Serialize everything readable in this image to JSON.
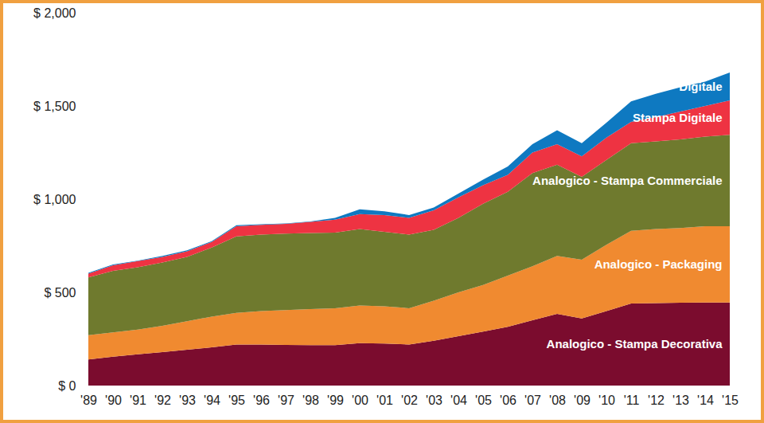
{
  "chart_data": {
    "type": "area",
    "stacked": true,
    "categories": [
      "'89",
      "'90",
      "'91",
      "'92",
      "'93",
      "'94",
      "'95",
      "'96",
      "'97",
      "'98",
      "'99",
      "'00",
      "'01",
      "'02",
      "'03",
      "'04",
      "'05",
      "'06",
      "'07",
      "'08",
      "'09",
      "'10",
      "'11",
      "'12",
      "'13",
      "'14",
      "'15"
    ],
    "series": [
      {
        "name": "Analogico - Stampa Decorativa",
        "color": "#7b0c2e",
        "values": [
          140,
          155,
          168,
          180,
          192,
          205,
          220,
          220,
          218,
          217,
          217,
          228,
          225,
          220,
          240,
          265,
          290,
          315,
          350,
          385,
          360,
          400,
          440,
          442,
          444,
          445,
          445
        ]
      },
      {
        "name": "Analogico - Packaging",
        "color": "#f08a30",
        "values": [
          130,
          130,
          132,
          140,
          153,
          165,
          170,
          180,
          187,
          193,
          198,
          202,
          200,
          195,
          215,
          235,
          250,
          275,
          290,
          310,
          315,
          355,
          390,
          398,
          401,
          410,
          410
        ]
      },
      {
        "name": "Analogico - Stampa Commerciale",
        "color": "#6f7a2e",
        "values": [
          310,
          330,
          335,
          340,
          345,
          370,
          410,
          410,
          410,
          408,
          405,
          410,
          400,
          395,
          380,
          400,
          435,
          450,
          500,
          490,
          445,
          455,
          470,
          470,
          475,
          480,
          490
        ]
      },
      {
        "name": "Stampa Digitale",
        "color": "#ee3342",
        "values": [
          20,
          30,
          33,
          30,
          30,
          30,
          55,
          52,
          53,
          60,
          70,
          80,
          90,
          90,
          105,
          110,
          100,
          90,
          110,
          110,
          110,
          120,
          115,
          130,
          150,
          165,
          185
        ]
      },
      {
        "name": "Digitale",
        "color": "#0e79c1",
        "values": [
          5,
          5,
          2,
          5,
          5,
          5,
          5,
          3,
          2,
          2,
          10,
          25,
          20,
          15,
          15,
          20,
          30,
          45,
          45,
          75,
          70,
          80,
          110,
          125,
          130,
          130,
          150
        ]
      }
    ],
    "ylim": [
      0,
      2000
    ],
    "yticks": [
      {
        "value": 0,
        "label": "$ 0"
      },
      {
        "value": 500,
        "label": "$ 500"
      },
      {
        "value": 1000,
        "label": "$ 1,000"
      },
      {
        "value": 1500,
        "label": "$ 1,500"
      },
      {
        "value": 2000,
        "label": "$ 2,000"
      }
    ]
  }
}
